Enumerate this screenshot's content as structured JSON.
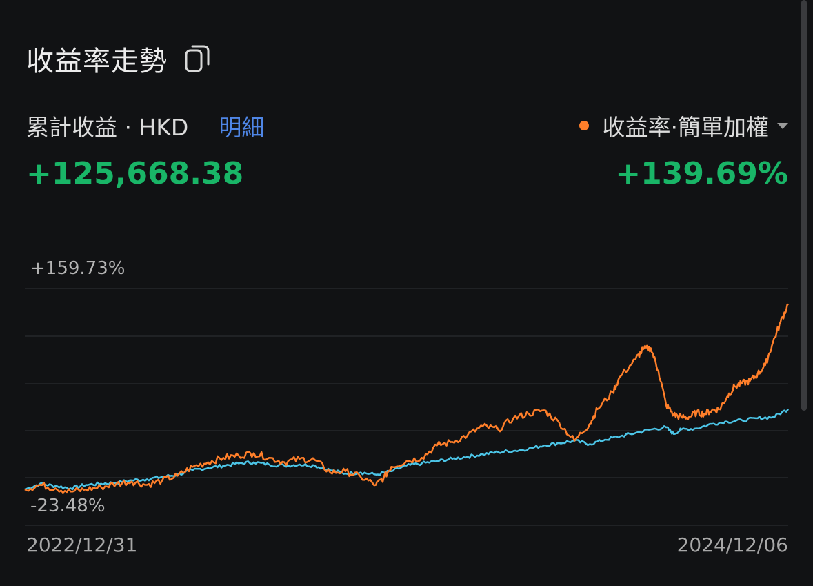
{
  "header": {
    "title": "收益率走勢"
  },
  "summary": {
    "cumulative_label": "累計收益 · HKD",
    "detail_label": "明細",
    "cumulative_value": "+125,668.38",
    "rate_label": "收益率·簡單加權",
    "rate_value": "+139.69%"
  },
  "colors": {
    "portfolio": "#ff7f2a",
    "benchmark": "#4cc4e6",
    "positive": "#19b567"
  },
  "chart_data": {
    "type": "line",
    "title": "",
    "x_start_label": "2022/12/31",
    "x_end_label": "2024/12/06",
    "y_max_label": "+159.73%",
    "y_min_label": "-23.48%",
    "ylim": [
      -23.48,
      159.73
    ],
    "grid": true,
    "series": [
      {
        "color": "#ff7f2a",
        "x": [
          0,
          0.02,
          0.04,
          0.06,
          0.08,
          0.1,
          0.12,
          0.14,
          0.16,
          0.18,
          0.2,
          0.22,
          0.24,
          0.26,
          0.28,
          0.3,
          0.32,
          0.34,
          0.36,
          0.38,
          0.4,
          0.42,
          0.44,
          0.46,
          0.47,
          0.48,
          0.5,
          0.52,
          0.54,
          0.56,
          0.58,
          0.6,
          0.62,
          0.64,
          0.66,
          0.68,
          0.7,
          0.72,
          0.74,
          0.75,
          0.77,
          0.78,
          0.8,
          0.81,
          0.82,
          0.83,
          0.84,
          0.85,
          0.86,
          0.87,
          0.88,
          0.89,
          0.9,
          0.91,
          0.92,
          0.93,
          0.94,
          0.95,
          0.96,
          0.97,
          0.98,
          0.99,
          1.0
        ],
        "y": [
          -18,
          -14,
          -17,
          -20,
          -18,
          -16,
          -13,
          -11,
          -14,
          -10,
          -6,
          2,
          6,
          10,
          12,
          14,
          10,
          6,
          9,
          8,
          -3,
          -2,
          -7,
          -14,
          -8,
          2,
          7,
          10,
          21,
          24,
          30,
          38,
          35,
          45,
          49,
          52,
          41,
          25,
          40,
          53,
          68,
          82,
          97,
          106,
          107,
          87,
          57,
          48,
          46,
          46,
          50,
          49,
          52,
          53,
          64,
          73,
          76,
          78,
          84,
          92,
          112,
          130,
          146
        ]
      },
      {
        "color": "#4cc4e6",
        "x": [
          0,
          0.02,
          0.04,
          0.06,
          0.08,
          0.1,
          0.12,
          0.14,
          0.16,
          0.18,
          0.2,
          0.22,
          0.24,
          0.26,
          0.28,
          0.3,
          0.32,
          0.34,
          0.36,
          0.38,
          0.4,
          0.42,
          0.44,
          0.46,
          0.48,
          0.5,
          0.52,
          0.54,
          0.56,
          0.58,
          0.6,
          0.62,
          0.64,
          0.66,
          0.68,
          0.7,
          0.72,
          0.74,
          0.76,
          0.78,
          0.8,
          0.82,
          0.84,
          0.85,
          0.86,
          0.88,
          0.9,
          0.92,
          0.94,
          0.96,
          0.98,
          1.0
        ],
        "y": [
          -18,
          -13,
          -15,
          -17,
          -14,
          -13,
          -12,
          -10,
          -9,
          -7,
          -5,
          -1,
          1,
          3,
          5,
          6,
          4,
          3,
          4,
          3,
          -1,
          -4,
          -3,
          -5,
          -2,
          3,
          5,
          7,
          9,
          11,
          13,
          15,
          16,
          18,
          21,
          23,
          25,
          22,
          26,
          29,
          32,
          35,
          37,
          31,
          35,
          36,
          40,
          42,
          43,
          45,
          46,
          53
        ]
      }
    ]
  }
}
